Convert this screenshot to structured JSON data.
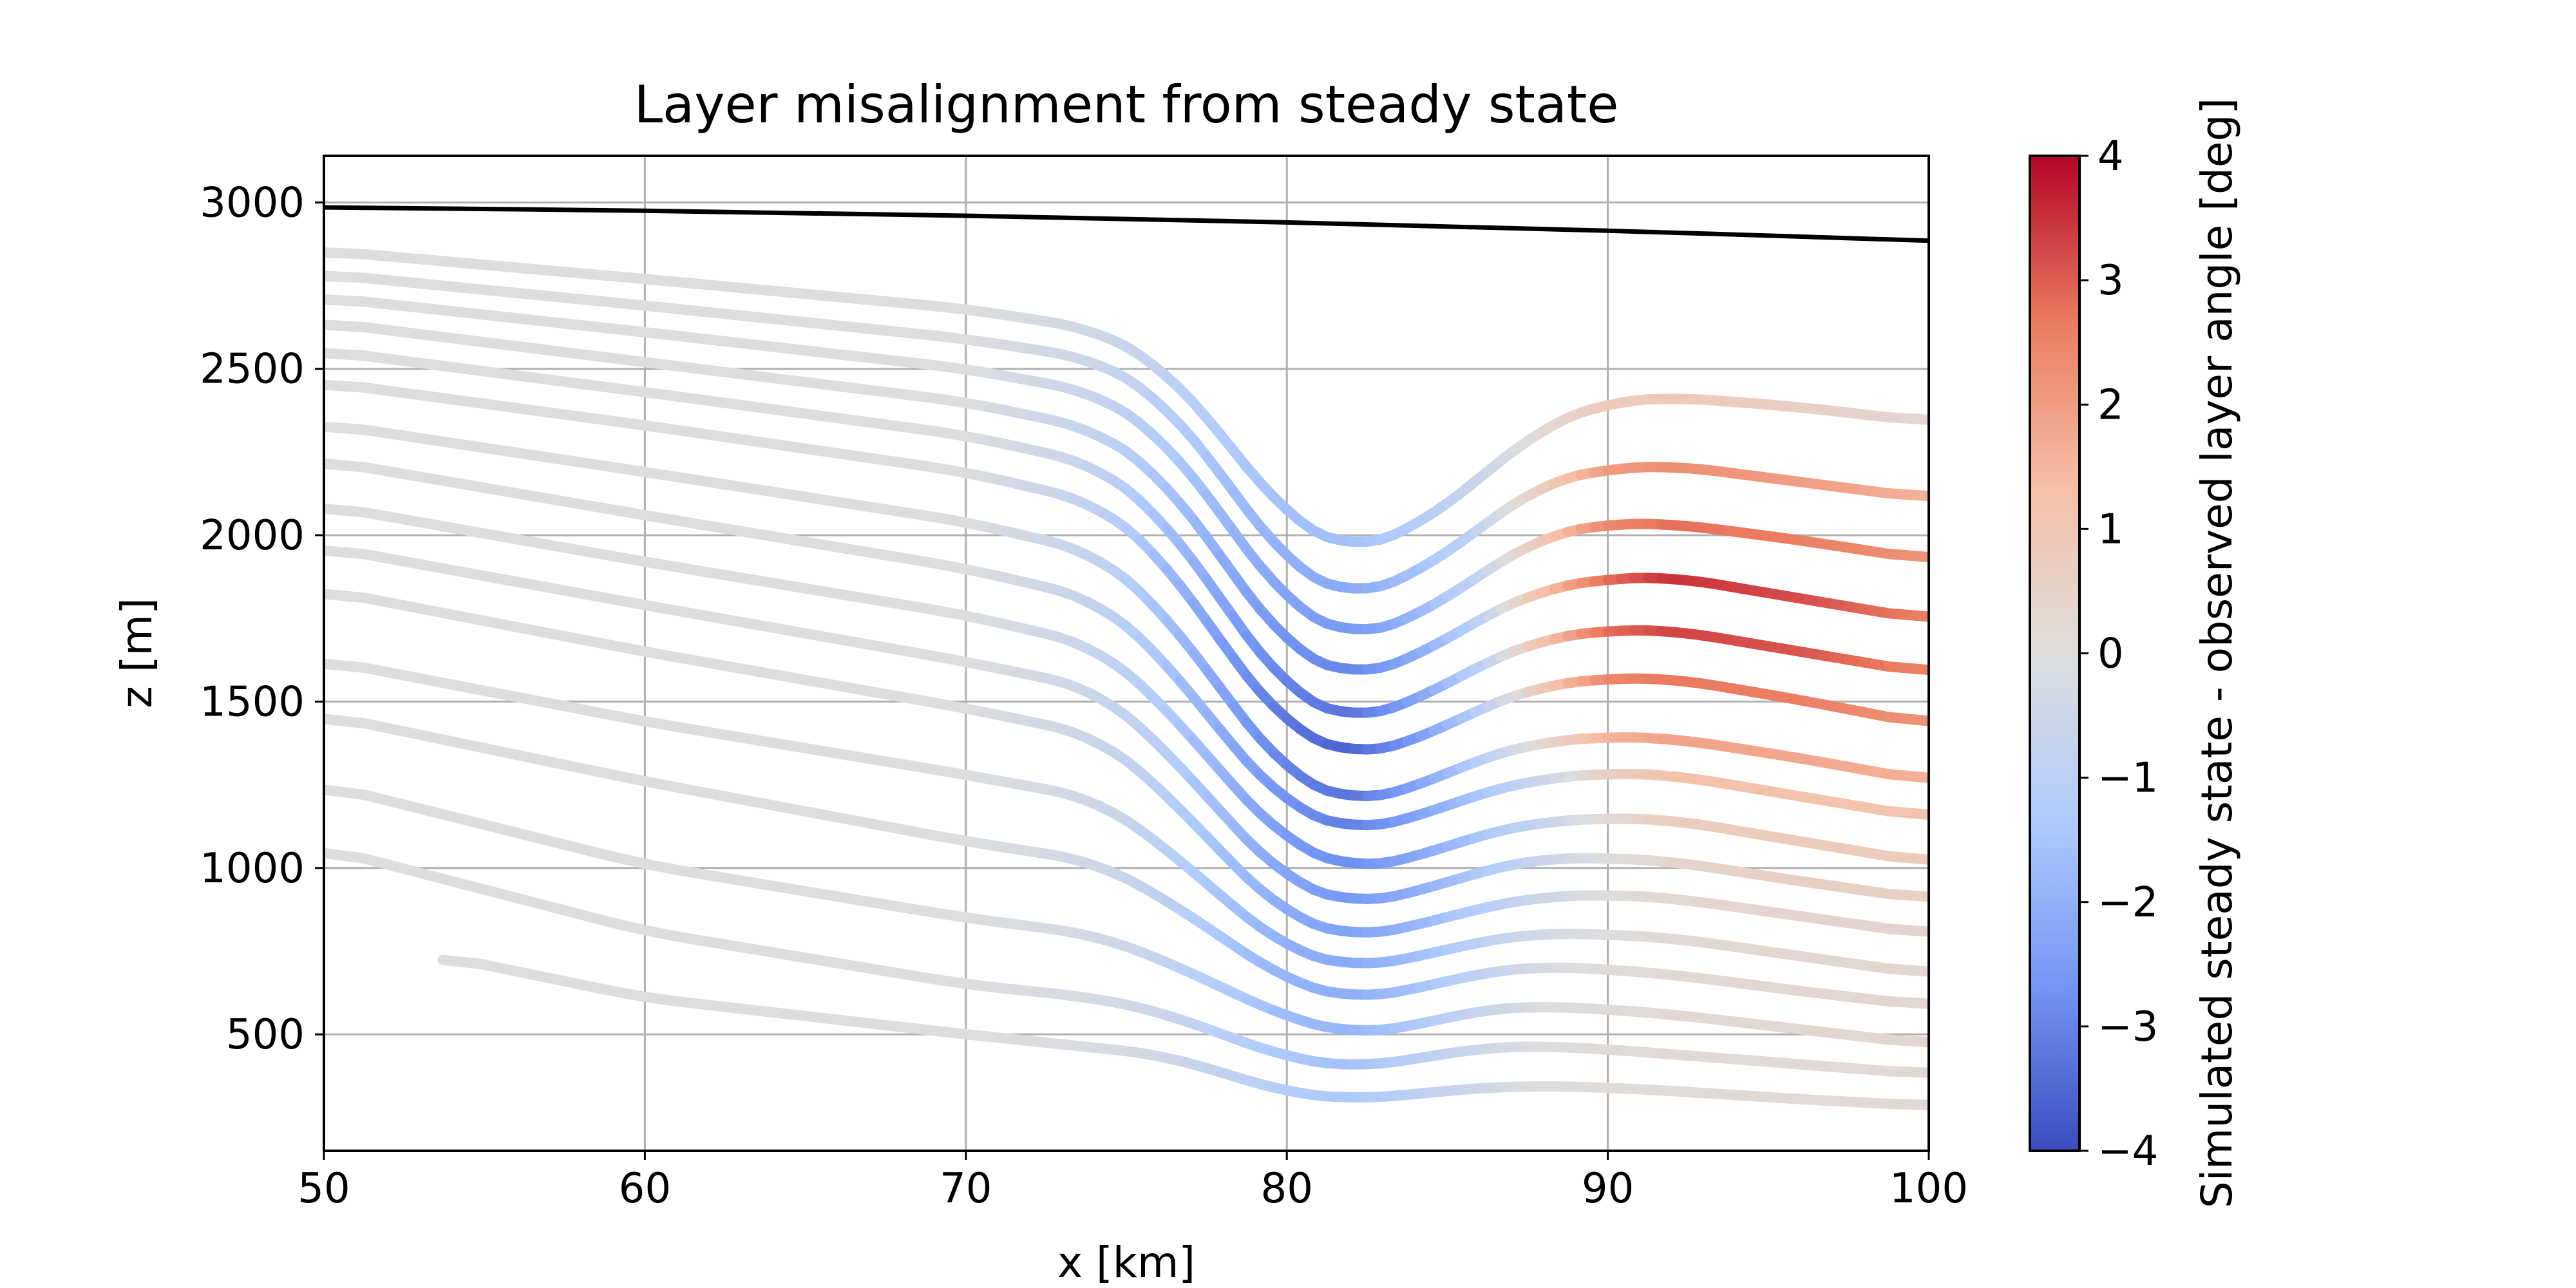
{
  "chart_data": {
    "type": "line",
    "title": "Layer misalignment from steady state",
    "xlabel": "x [km]",
    "ylabel": "z [m]",
    "xlim": [
      50,
      100
    ],
    "ylim": [
      150,
      3140
    ],
    "xticks": [
      50,
      60,
      70,
      80,
      90,
      100
    ],
    "yticks": [
      500,
      1000,
      1500,
      2000,
      2500,
      3000
    ],
    "xtick_labels": [
      "50",
      "60",
      "70",
      "80",
      "90",
      "100"
    ],
    "ytick_labels": [
      "500",
      "1000",
      "1500",
      "2000",
      "2500",
      "3000"
    ],
    "grid": true,
    "colorbar": {
      "label": "Simulated steady state - observed layer angle [deg]",
      "range": [
        -4,
        4
      ],
      "ticks": [
        -4,
        -3,
        -2,
        -1,
        0,
        1,
        2,
        3,
        4
      ],
      "tick_labels": [
        "−4",
        "−3",
        "−2",
        "−1",
        "0",
        "1",
        "2",
        "3",
        "4"
      ],
      "colormap": "coolwarm",
      "colors": [
        "#3b4cc0",
        "#7396f5",
        "#b0cbfc",
        "#dddddd",
        "#f6bfa6",
        "#ea7b60",
        "#b40426"
      ]
    },
    "surface": {
      "color": "#000000",
      "x": [
        50,
        60,
        70,
        80,
        90,
        100
      ],
      "z": [
        2985,
        2975,
        2960,
        2940,
        2915,
        2885
      ]
    },
    "layers": [
      {
        "x": [
          50,
          60,
          70,
          74,
          76,
          78,
          80,
          82,
          84,
          86,
          88,
          90,
          92,
          96,
          100
        ],
        "z": [
          2855,
          2770,
          2680,
          2620,
          2520,
          2300,
          2050,
          1950,
          2020,
          2170,
          2330,
          2400,
          2415,
          2385,
          2340
        ],
        "misfit": [
          0,
          0,
          0,
          -0.4,
          -0.8,
          -1.3,
          -1.6,
          -1.6,
          -1.2,
          -0.6,
          0.2,
          0.8,
          0.9,
          0.6,
          0.3
        ]
      },
      {
        "x": [
          50,
          60,
          70,
          74,
          76,
          78,
          80,
          82,
          84,
          86,
          88,
          90,
          92,
          96,
          100
        ],
        "z": [
          2785,
          2690,
          2590,
          2530,
          2420,
          2180,
          1910,
          1810,
          1880,
          2020,
          2160,
          2200,
          2210,
          2160,
          2110
        ],
        "misfit": [
          0,
          0,
          0,
          -0.5,
          -1,
          -1.6,
          -2,
          -2.2,
          -1.6,
          -0.8,
          0.7,
          2,
          2.3,
          2,
          1.6
        ]
      },
      {
        "x": [
          50,
          60,
          70,
          74,
          76,
          78,
          80,
          82,
          84,
          86,
          88,
          90,
          92,
          96,
          100
        ],
        "z": [
          2715,
          2610,
          2500,
          2430,
          2310,
          2060,
          1790,
          1690,
          1750,
          1880,
          2000,
          2035,
          2035,
          1985,
          1925
        ],
        "misfit": [
          0,
          0,
          0,
          -0.6,
          -1.2,
          -1.8,
          -2.3,
          -2.6,
          -1.9,
          -0.8,
          0.9,
          2.4,
          2.8,
          2.6,
          2.2
        ]
      },
      {
        "x": [
          50,
          60,
          70,
          74,
          76,
          78,
          80,
          82,
          84,
          86,
          88,
          90,
          92,
          96,
          100
        ],
        "z": [
          2640,
          2520,
          2400,
          2320,
          2190,
          1930,
          1660,
          1570,
          1630,
          1750,
          1840,
          1870,
          1875,
          1810,
          1745
        ],
        "misfit": [
          0,
          0,
          0,
          -0.7,
          -1.4,
          -2.1,
          -2.7,
          -3,
          -2.2,
          -1,
          1.2,
          2.8,
          3.5,
          3.2,
          2.6
        ]
      },
      {
        "x": [
          50,
          60,
          70,
          74,
          76,
          78,
          80,
          82,
          84,
          86,
          88,
          90,
          92,
          96,
          100
        ],
        "z": [
          2555,
          2430,
          2300,
          2215,
          2070,
          1800,
          1530,
          1440,
          1500,
          1610,
          1690,
          1715,
          1715,
          1650,
          1585
        ],
        "misfit": [
          0,
          0,
          0,
          -0.7,
          -1.5,
          -2.3,
          -3,
          -3.3,
          -2.4,
          -1.1,
          1.1,
          2.8,
          3.3,
          3.1,
          2.5
        ]
      },
      {
        "x": [
          50,
          60,
          70,
          74,
          76,
          78,
          80,
          82,
          84,
          86,
          88,
          90,
          92,
          96,
          100
        ],
        "z": [
          2460,
          2330,
          2190,
          2100,
          1950,
          1670,
          1420,
          1335,
          1380,
          1480,
          1550,
          1570,
          1570,
          1505,
          1430
        ],
        "misfit": [
          0,
          0,
          0,
          -0.8,
          -1.6,
          -2.5,
          -3.2,
          -3.6,
          -2.6,
          -1.2,
          0.9,
          2.4,
          2.7,
          2.6,
          2.2
        ]
      },
      {
        "x": [
          50,
          60,
          70,
          74,
          76,
          78,
          80,
          82,
          84,
          86,
          88,
          90,
          92,
          96,
          100
        ],
        "z": [
          2335,
          2190,
          2040,
          1950,
          1790,
          1530,
          1280,
          1195,
          1240,
          1330,
          1380,
          1395,
          1390,
          1330,
          1260
        ],
        "misfit": [
          0,
          0,
          0,
          -0.7,
          -1.5,
          -2.3,
          -3,
          -3.3,
          -2.4,
          -1.2,
          0.3,
          1.5,
          1.9,
          1.8,
          1.6
        ]
      },
      {
        "x": [
          50,
          60,
          70,
          74,
          76,
          78,
          80,
          82,
          84,
          86,
          88,
          90,
          92,
          96,
          100
        ],
        "z": [
          2225,
          2060,
          1900,
          1810,
          1650,
          1400,
          1185,
          1110,
          1150,
          1225,
          1270,
          1285,
          1280,
          1215,
          1150
        ],
        "misfit": [
          0,
          0,
          0,
          -0.7,
          -1.4,
          -2.1,
          -2.7,
          -3.1,
          -2.4,
          -1.5,
          -0.6,
          0.6,
          1.2,
          1.2,
          1.1
        ]
      },
      {
        "x": [
          50,
          60,
          70,
          74,
          76,
          78,
          80,
          82,
          84,
          86,
          88,
          90,
          92,
          96,
          100
        ],
        "z": [
          2090,
          1920,
          1760,
          1670,
          1510,
          1280,
          1075,
          995,
          1030,
          1100,
          1140,
          1150,
          1145,
          1080,
          1015
        ],
        "misfit": [
          0,
          0,
          0,
          -0.6,
          -1.2,
          -1.9,
          -2.5,
          -2.8,
          -2.3,
          -1.5,
          -0.7,
          0.2,
          0.7,
          0.8,
          0.8
        ]
      },
      {
        "x": [
          50,
          60,
          70,
          74,
          76,
          78,
          80,
          82,
          84,
          86,
          88,
          90,
          92,
          96,
          100
        ],
        "z": [
          1965,
          1790,
          1620,
          1540,
          1380,
          1160,
          960,
          890,
          925,
          990,
          1030,
          1030,
          1020,
          960,
          905
        ],
        "misfit": [
          0,
          0,
          0,
          -0.5,
          -1,
          -1.7,
          -2.3,
          -2.6,
          -2.1,
          -1.4,
          -0.6,
          0,
          0.4,
          0.6,
          0.6
        ]
      },
      {
        "x": [
          50,
          60,
          70,
          74,
          76,
          78,
          80,
          82,
          84,
          86,
          88,
          90,
          92,
          96,
          100
        ],
        "z": [
          1835,
          1650,
          1480,
          1400,
          1250,
          1040,
          855,
          790,
          825,
          880,
          915,
          920,
          910,
          855,
          800
        ],
        "misfit": [
          0,
          0,
          0,
          -0.5,
          -1,
          -1.6,
          -2.1,
          -2.4,
          -1.9,
          -1.2,
          -0.5,
          0,
          0.3,
          0.4,
          0.4
        ]
      },
      {
        "x": [
          50,
          60,
          70,
          74,
          76,
          78,
          80,
          82,
          84,
          86,
          88,
          90,
          92,
          96,
          100
        ],
        "z": [
          1625,
          1440,
          1280,
          1210,
          1080,
          910,
          755,
          700,
          730,
          780,
          805,
          800,
          790,
          735,
          680
        ],
        "misfit": [
          0,
          0,
          0,
          -0.4,
          -0.9,
          -1.5,
          -2,
          -2.2,
          -1.7,
          -1,
          -0.3,
          0,
          0.2,
          0.3,
          0.3
        ]
      },
      {
        "x": [
          50,
          60,
          70,
          74,
          76,
          78,
          80,
          82,
          84,
          86,
          88,
          90,
          92,
          96,
          100
        ],
        "z": [
          1460,
          1260,
          1080,
          1020,
          920,
          790,
          660,
          605,
          635,
          685,
          705,
          695,
          680,
          630,
          585
        ],
        "misfit": [
          0,
          0,
          0,
          -0.4,
          -0.8,
          -1.4,
          -1.9,
          -2.1,
          -1.6,
          -0.9,
          -0.2,
          0.1,
          0.2,
          0.3,
          0.3
        ]
      },
      {
        "x": [
          50,
          60,
          70,
          74,
          76,
          78,
          80,
          82,
          84,
          86,
          88,
          90,
          92,
          96,
          100
        ],
        "z": [
          1250,
          1010,
          850,
          800,
          730,
          640,
          550,
          500,
          525,
          575,
          585,
          575,
          560,
          515,
          470
        ],
        "misfit": [
          0,
          0,
          0,
          -0.3,
          -0.7,
          -1.2,
          -1.7,
          -1.9,
          -1.4,
          -0.7,
          -0.1,
          0.1,
          0.2,
          0.3,
          0.3
        ]
      },
      {
        "x": [
          50,
          60,
          70,
          74,
          76,
          78,
          80,
          82,
          84,
          86,
          88,
          90,
          92,
          96,
          100
        ],
        "z": [
          1060,
          810,
          650,
          610,
          570,
          500,
          430,
          400,
          425,
          460,
          465,
          455,
          440,
          410,
          380
        ],
        "misfit": [
          0,
          0,
          0,
          -0.2,
          -0.5,
          -1,
          -1.4,
          -1.6,
          -1.1,
          -0.5,
          0,
          0.1,
          0.2,
          0.2,
          0.2
        ]
      },
      {
        "x": [
          53.7,
          60,
          70,
          74,
          76,
          78,
          80,
          82,
          84,
          86,
          88,
          90,
          92,
          96,
          100
        ],
        "z": [
          735,
          610,
          500,
          460,
          440,
          385,
          325,
          305,
          320,
          340,
          345,
          340,
          330,
          305,
          285
        ],
        "misfit": [
          0,
          0,
          0,
          -0.1,
          -0.4,
          -0.8,
          -1.2,
          -1.4,
          -1,
          -0.5,
          0,
          0.1,
          0.1,
          0.2,
          0.2
        ]
      }
    ]
  }
}
